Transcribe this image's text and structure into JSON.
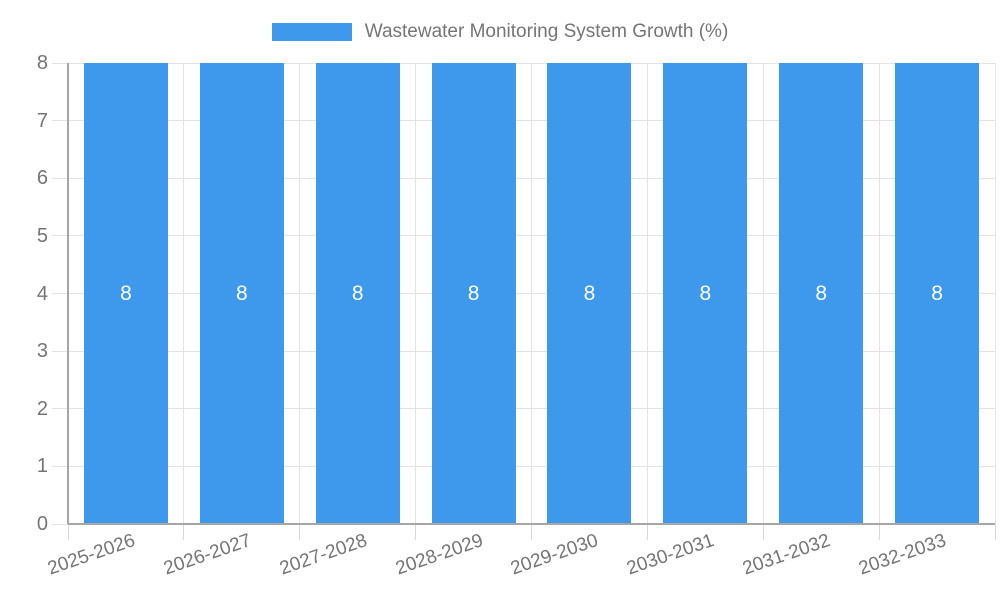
{
  "chart_data": {
    "type": "bar",
    "title": "Wastewater Monitoring System Growth (%)",
    "categories": [
      "2025-2026",
      "2026-2027",
      "2027-2028",
      "2028-2029",
      "2029-2030",
      "2030-2031",
      "2031-2032",
      "2032-2033"
    ],
    "series": [
      {
        "name": "Wastewater Monitoring System Growth (%)",
        "values": [
          8,
          8,
          8,
          8,
          8,
          8,
          8,
          8
        ],
        "bar_labels": [
          "8",
          "8",
          "8",
          "8",
          "8",
          "8",
          "8",
          "8"
        ]
      }
    ],
    "xlabel": "",
    "ylabel": "",
    "ylim": [
      0,
      8
    ],
    "yticks": [
      "0",
      "1",
      "2",
      "3",
      "4",
      "5",
      "6",
      "7",
      "8"
    ],
    "grid": true,
    "legend_position": "top-center",
    "colors": {
      "bar": "#3E99ED",
      "grid": "#E3E3E3",
      "tick": "#D9D9D9",
      "axis": "#A6A6A6",
      "text": "#757575",
      "bar_label": "#FFFFFF",
      "background": "#FFFFFF"
    }
  }
}
